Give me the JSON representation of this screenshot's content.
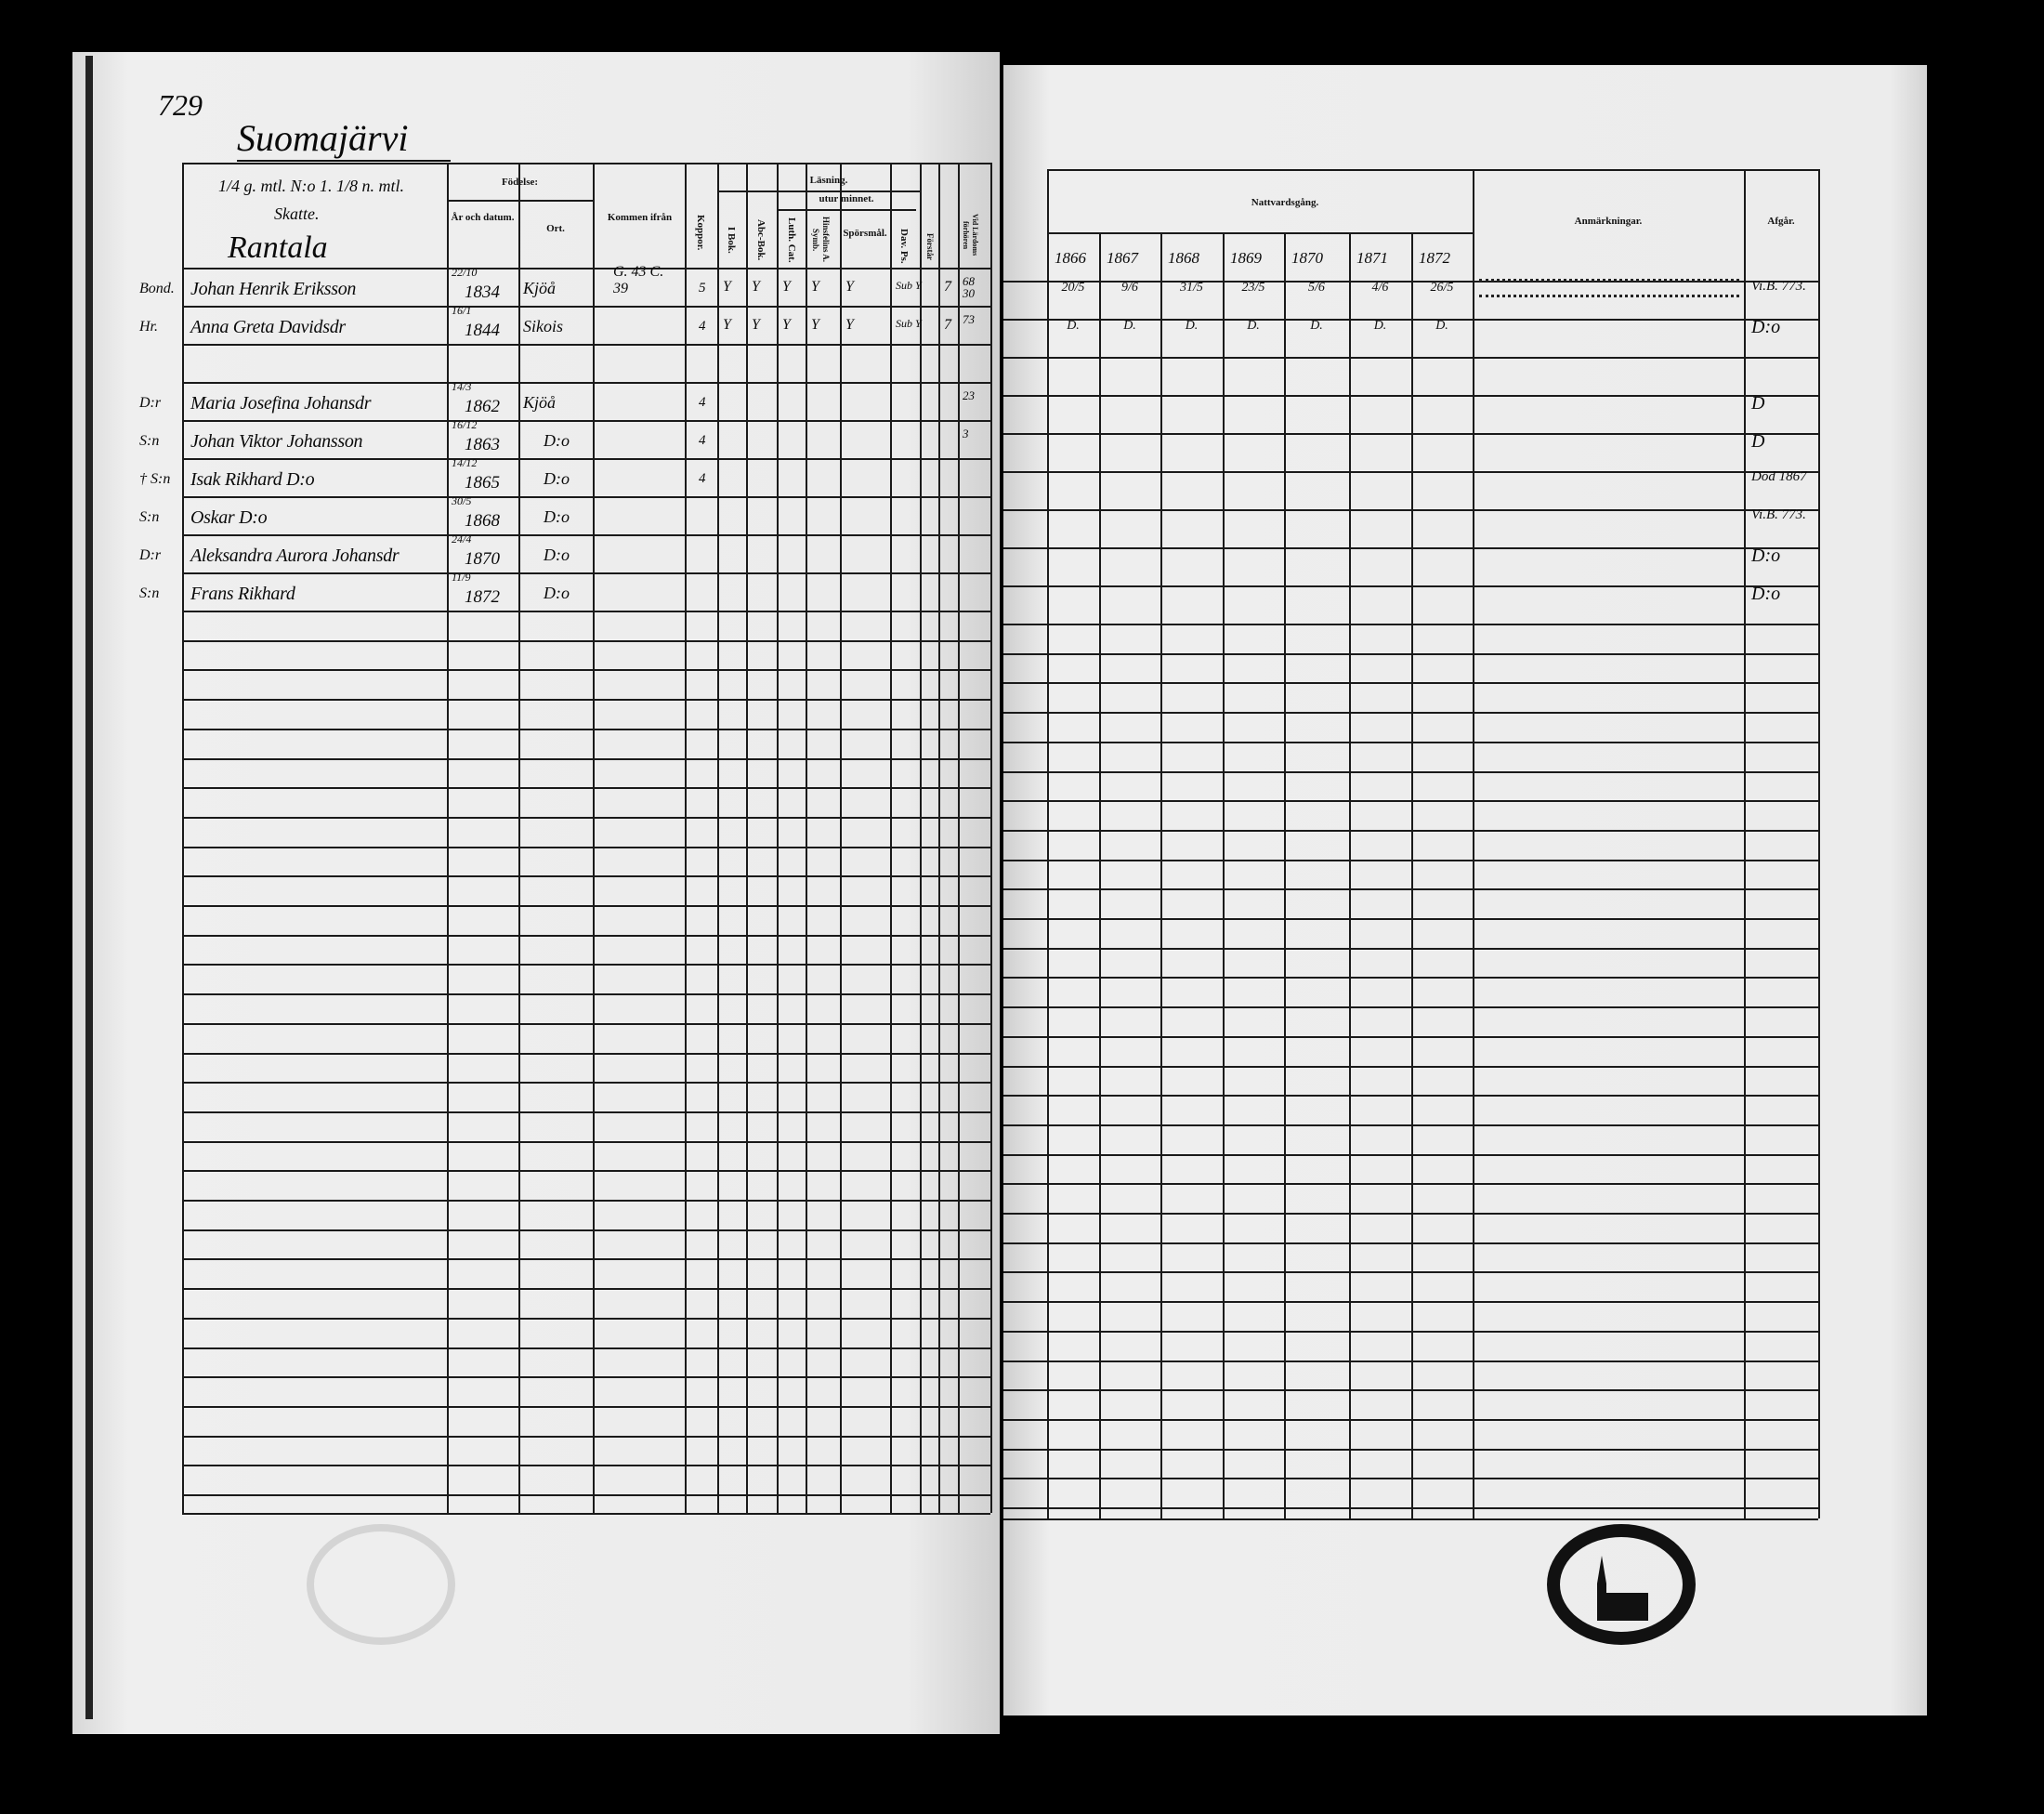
{
  "page_number": "729",
  "village": "Suomajärvi",
  "farm_header": {
    "line1": "1/4 g. mtl. N:o 1. 1/8 n. mtl.",
    "line2": "Skatte.",
    "farm": "Rantala"
  },
  "left_headers": {
    "birth": "Födelse:",
    "year_date": "År och datum.",
    "place": "Ort.",
    "came_from": "Kommen ifrån",
    "smallpox": "Koppor.",
    "reading": "Läsning.",
    "by_heart": "utur minnet.",
    "in_book": "I Bok.",
    "abc_book": "Abc-Bok.",
    "luth_cat": "Luth. Cat.",
    "symb": "Hinsfelins A. Symb.",
    "questions": "Spörsmål.",
    "dav_ps": "Dav. Ps.",
    "understands": "Förstår",
    "exams": "Vid Lärdoms förhören"
  },
  "right_headers": {
    "communion": "Nattvardsgång.",
    "years": [
      "1866",
      "1867",
      "1868",
      "1869",
      "1870",
      "1871",
      "1872"
    ],
    "remarks": "Anmärkningar.",
    "departed": "Afgår."
  },
  "persons": [
    {
      "role": "Bond.",
      "name": "Johan Henrik Eriksson",
      "date": "22/10",
      "year": "1834",
      "place": "Kjöå",
      "came_from": "G. 43 C. 39",
      "smallpox": "5",
      "marks": [
        "Y",
        "Y",
        "Y",
        "Y",
        "Y",
        "Sub Y",
        "",
        "7"
      ],
      "exams": "68 30",
      "communion": [
        "20/5",
        "9/6",
        "31/5",
        "23/5",
        "5/6",
        "4/6",
        "26/5"
      ],
      "departed": "Vi.B. 773."
    },
    {
      "role": "Hr.",
      "name": "Anna Greta Davidsdr",
      "date": "16/1",
      "year": "1844",
      "place": "Sikois",
      "came_from": "",
      "smallpox": "4",
      "marks": [
        "Y",
        "Y",
        "Y",
        "Y",
        "Y",
        "Sub Y",
        "",
        "7"
      ],
      "exams": "73",
      "communion": [
        "D.",
        "D.",
        "D.",
        "D.",
        "D.",
        "D.",
        "D."
      ],
      "departed": "D:o"
    },
    {
      "role": "",
      "name": "",
      "date": "",
      "year": "",
      "place": "",
      "came_from": "",
      "smallpox": "",
      "marks": [],
      "exams": "",
      "communion": [],
      "departed": ""
    },
    {
      "role": "D:r",
      "name": "Maria Josefina Johansdr",
      "date": "14/3",
      "year": "1862",
      "place": "Kjöå",
      "came_from": "",
      "smallpox": "4",
      "marks": [],
      "exams": "23",
      "communion": [],
      "departed": "D"
    },
    {
      "role": "S:n",
      "name": "Johan Viktor Johansson",
      "date": "16/12",
      "year": "1863",
      "place": "D:o",
      "came_from": "",
      "smallpox": "4",
      "marks": [],
      "exams": "3",
      "communion": [],
      "departed": "D"
    },
    {
      "role": "† S:n",
      "name": "Isak Rikhard D:o",
      "date": "14/12",
      "year": "1865",
      "place": "D:o",
      "came_from": "",
      "smallpox": "4",
      "marks": [],
      "exams": "",
      "communion": [],
      "departed": "Död 1867"
    },
    {
      "role": "S:n",
      "name": "Oskar D:o",
      "date": "30/5",
      "year": "1868",
      "place": "D:o",
      "came_from": "",
      "smallpox": "",
      "marks": [],
      "exams": "",
      "communion": [],
      "departed": "Vi.B. 773."
    },
    {
      "role": "D:r",
      "name": "Aleksandra Aurora Johansdr",
      "date": "24/4",
      "year": "1870",
      "place": "D:o",
      "came_from": "",
      "smallpox": "",
      "marks": [],
      "exams": "",
      "communion": [],
      "departed": "D:o"
    },
    {
      "role": "S:n",
      "name": "Frans Rikhard",
      "date": "11/9",
      "year": "1872",
      "place": "D:o",
      "came_from": "",
      "smallpox": "",
      "marks": [],
      "exams": "",
      "communion": [],
      "departed": "D:o"
    }
  ],
  "stamps": {
    "right": "church seal",
    "left": "faint church seal"
  }
}
